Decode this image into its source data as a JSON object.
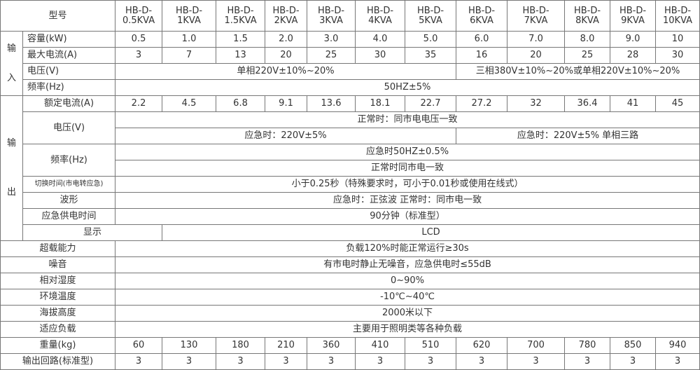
{
  "header": {
    "label": "型号",
    "models": [
      [
        "HB-D-",
        "0.5KVA"
      ],
      [
        "HB-D-",
        "1KVA"
      ],
      [
        "HB-D-",
        "1.5KVA"
      ],
      [
        "HB-D-",
        "2KVA"
      ],
      [
        "HB-D-",
        "3KVA"
      ],
      [
        "HB-D-",
        "4KVA"
      ],
      [
        "HB-D-",
        "5KVA"
      ],
      [
        "HB-D-",
        "6KVA"
      ],
      [
        "HB-D-",
        "7KVA"
      ],
      [
        "HB-D-",
        "8KVA"
      ],
      [
        "HB-D-",
        "9KVA"
      ],
      [
        "HB-D-",
        "10KVA"
      ]
    ]
  },
  "input": {
    "group": [
      "输",
      "入"
    ],
    "capacity": {
      "label": "容量(kW)",
      "values": [
        "0.5",
        "1.0",
        "1.5",
        "2.0",
        "3.0",
        "4.0",
        "5.0",
        "6.0",
        "7.0",
        "8.0",
        "9.0",
        "10"
      ]
    },
    "max_current": {
      "label": "最大电流(A)",
      "values": [
        "3",
        "7",
        "13",
        "20",
        "25",
        "30",
        "35",
        "16",
        "20",
        "25",
        "28",
        "30"
      ]
    },
    "voltage": {
      "label": "电压(V)",
      "single": "单相220V±10%~20%",
      "three": "三相380V±10%~20%或单相220V±10%~20%"
    },
    "frequency": {
      "label": "频率(Hz)",
      "value": "50HZ±5%"
    }
  },
  "output": {
    "group": [
      "输",
      "出"
    ],
    "rated_current": {
      "label": "额定电流(A)",
      "values": [
        "2.2",
        "4.5",
        "6.8",
        "9.1",
        "13.6",
        "18.1",
        "22.7",
        "27.2",
        "32",
        "36.4",
        "41",
        "45"
      ]
    },
    "voltage": {
      "label": "电压(V)",
      "normal": "正常时：同市电电压一致",
      "emergency_a": "应急时：220V±5%",
      "emergency_b": "应急时：220V±5%  单相三路"
    },
    "frequency": {
      "label": "频率(Hz)",
      "emergency": "应急时50HZ±0.5%",
      "normal": "正常时同市电一致"
    },
    "switch_time": {
      "label": "切换时间(市电转应急)",
      "value": "小于0.25秒（特殊要求时，可小于0.01秒或使用在线式）"
    },
    "waveform": {
      "label": "波形",
      "value": "应急时：正弦波  正常时：同市电一致"
    },
    "backup_time": {
      "label": "应急供电时间",
      "value": "90分钟（标准型）"
    }
  },
  "general": [
    {
      "label": "显示",
      "value": "LCD"
    },
    {
      "label": "超载能力",
      "value": "负载120%时能正常运行≥30s"
    },
    {
      "label": "噪音",
      "value": "有市电时静止无噪音，应急供电时≤55dB"
    },
    {
      "label": "相对湿度",
      "value": "0~90%"
    },
    {
      "label": "环境温度",
      "value": "-10℃~40℃"
    },
    {
      "label": "海拔高度",
      "value": "2000米以下"
    },
    {
      "label": "适应负载",
      "value": "主要用于照明类等各种负载"
    }
  ],
  "weight": {
    "label": "重量(kg)",
    "values": [
      "60",
      "130",
      "180",
      "210",
      "360",
      "410",
      "510",
      "620",
      "700",
      "780",
      "850",
      "940"
    ]
  },
  "circuits": {
    "label": "输出回路(标准型)",
    "values": [
      "3",
      "3",
      "3",
      "3",
      "3",
      "3",
      "3",
      "3",
      "3",
      "3",
      "3",
      "3"
    ]
  }
}
